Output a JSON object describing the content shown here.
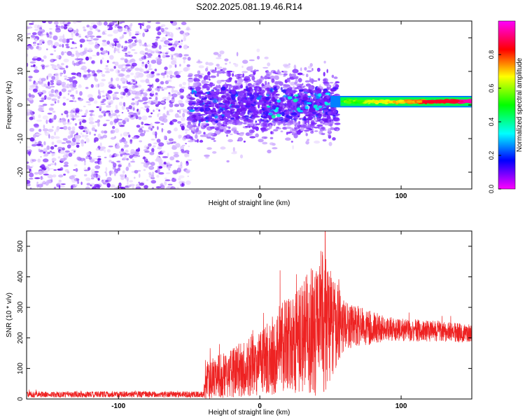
{
  "title": "S202.2025.081.19.46.R14",
  "chart_data": [
    {
      "type": "heatmap",
      "xlabel": "Height of straight line (km)",
      "ylabel": "Frequency (Hz)",
      "xlim": [
        -165,
        150
      ],
      "ylim": [
        -25,
        25
      ],
      "xticks": [
        -100,
        0,
        100
      ],
      "yticks": [
        -20,
        -10,
        0,
        10,
        20
      ],
      "colorbar": {
        "label": "Normalized spectral amplitude",
        "range": [
          0,
          1
        ],
        "ticks": [
          0.0,
          0.2,
          0.4,
          0.6,
          0.8
        ],
        "colormap": [
          "#ff00ff",
          "#0000ff",
          "#00ffff",
          "#00ff00",
          "#ffff00",
          "#ff0000",
          "#ff00ff"
        ]
      },
      "regions": [
        {
          "x": [
            -165,
            -50
          ],
          "freq_halfwidth": 25,
          "amplitude": 0.15,
          "description": "broadband low amplitude"
        },
        {
          "x": [
            -50,
            55
          ],
          "freq_halfwidth": 10,
          "amplitude": 0.3
        },
        {
          "x": [
            55,
            150
          ],
          "center_freq": 1,
          "freq_halfwidth": 1.5,
          "amplitude": 0.8
        }
      ]
    },
    {
      "type": "line",
      "xlabel": "Height of straight line (km)",
      "ylabel": "SNR (10 * v/v)",
      "xlim": [
        -165,
        150
      ],
      "ylim": [
        0,
        550
      ],
      "xticks": [
        -100,
        0,
        100
      ],
      "yticks": [
        0,
        100,
        200,
        300,
        400,
        500
      ],
      "series": [
        {
          "color": "#ee2222",
          "envelope": [
            {
              "x": -165,
              "mean": 15,
              "spread": 10
            },
            {
              "x": -40,
              "mean": 15,
              "spread": 10
            },
            {
              "x": -38,
              "mean": 60,
              "spread": 60
            },
            {
              "x": 0,
              "mean": 120,
              "spread": 110
            },
            {
              "x": 20,
              "mean": 180,
              "spread": 160
            },
            {
              "x": 40,
              "mean": 230,
              "spread": 220
            },
            {
              "x": 45,
              "mean": 260,
              "spread": 250
            },
            {
              "x": 60,
              "mean": 240,
              "spread": 80
            },
            {
              "x": 90,
              "mean": 230,
              "spread": 40
            },
            {
              "x": 150,
              "mean": 215,
              "spread": 30
            }
          ]
        }
      ]
    }
  ]
}
